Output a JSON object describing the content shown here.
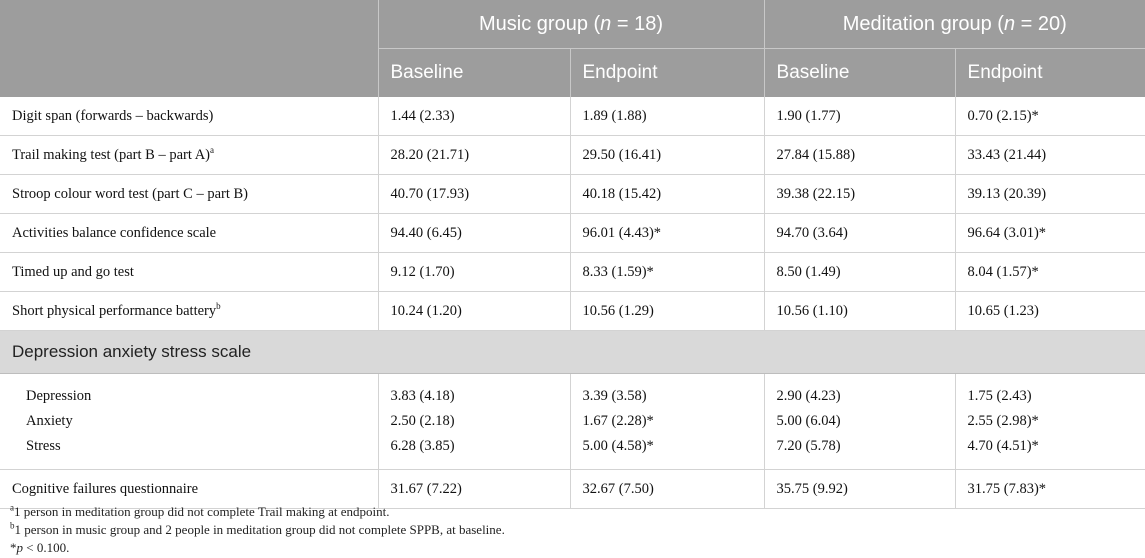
{
  "header": {
    "music_group_prefix": "Music group (",
    "music_group_n": "n",
    "music_group_suffix": " = 18)",
    "meditation_group_prefix": "Meditation group (",
    "meditation_group_n": "n",
    "meditation_group_suffix": " = 20)",
    "baseline_label": "Baseline",
    "endpoint_label": "Endpoint"
  },
  "rows": [
    {
      "label": "Digit span (forwards – backwards)",
      "sup": "",
      "music_baseline": "1.44 (2.33)",
      "music_endpoint": "1.89 (1.88)",
      "meditation_baseline": "1.90 (1.77)",
      "meditation_endpoint": "0.70 (2.15)*"
    },
    {
      "label": "Trail making test (part B – part A)",
      "sup": "a",
      "music_baseline": "28.20 (21.71)",
      "music_endpoint": "29.50 (16.41)",
      "meditation_baseline": "27.84 (15.88)",
      "meditation_endpoint": "33.43 (21.44)"
    },
    {
      "label": "Stroop colour word test (part C – part B)",
      "sup": "",
      "music_baseline": "40.70 (17.93)",
      "music_endpoint": "40.18 (15.42)",
      "meditation_baseline": "39.38 (22.15)",
      "meditation_endpoint": "39.13 (20.39)"
    },
    {
      "label": "Activities balance confidence scale",
      "sup": "",
      "music_baseline": "94.40 (6.45)",
      "music_endpoint": "96.01 (4.43)*",
      "meditation_baseline": "94.70 (3.64)",
      "meditation_endpoint": "96.64 (3.01)*"
    },
    {
      "label": "Timed up and go test",
      "sup": "",
      "music_baseline": "9.12 (1.70)",
      "music_endpoint": "8.33 (1.59)*",
      "meditation_baseline": "8.50 (1.49)",
      "meditation_endpoint": "8.04 (1.57)*"
    },
    {
      "label": "Short physical performance battery",
      "sup": "b",
      "music_baseline": "10.24 (1.20)",
      "music_endpoint": "10.56 (1.29)",
      "meditation_baseline": "10.56 (1.10)",
      "meditation_endpoint": "10.65 (1.23)"
    }
  ],
  "section": {
    "title": "Depression anxiety stress scale",
    "subrows": [
      {
        "label": "Depression",
        "music_baseline": "3.83 (4.18)",
        "music_endpoint": "3.39 (3.58)",
        "meditation_baseline": "2.90 (4.23)",
        "meditation_endpoint": "1.75 (2.43)"
      },
      {
        "label": "Anxiety",
        "music_baseline": "2.50 (2.18)",
        "music_endpoint": "1.67 (2.28)*",
        "meditation_baseline": "5.00 (6.04)",
        "meditation_endpoint": "2.55 (2.98)*"
      },
      {
        "label": "Stress",
        "music_baseline": "6.28 (3.85)",
        "music_endpoint": "5.00 (4.58)*",
        "meditation_baseline": "7.20 (5.78)",
        "meditation_endpoint": "4.70 (4.51)*"
      }
    ]
  },
  "last_row": {
    "label": "Cognitive failures questionnaire",
    "music_baseline": "31.67 (7.22)",
    "music_endpoint": "32.67 (7.50)",
    "meditation_baseline": "35.75 (9.92)",
    "meditation_endpoint": "31.75 (7.83)*"
  },
  "footnotes": {
    "a_mark": "a",
    "a_text": "1 person in meditation group did not complete Trail making at endpoint.",
    "b_mark": "b",
    "b_text": "1 person in music group and 2 people in meditation group did not complete SPPB, at baseline.",
    "star_mark": "*",
    "star_p": "p",
    "star_text": " < 0.100."
  }
}
